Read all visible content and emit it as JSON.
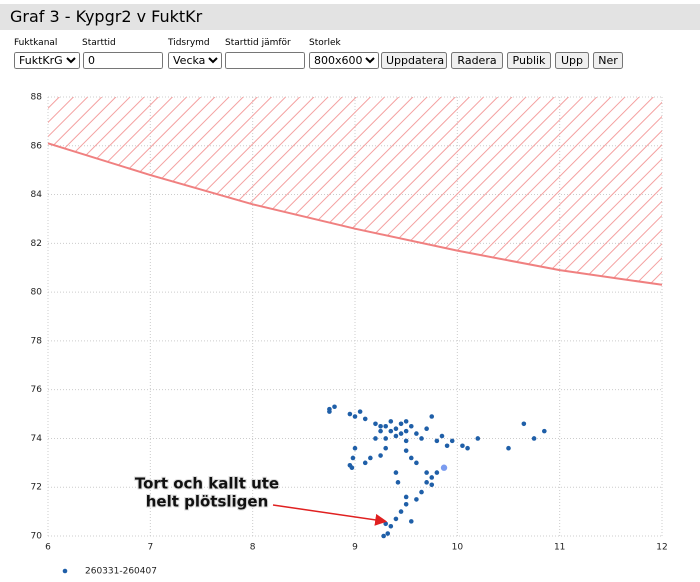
{
  "header": {
    "title": "Graf 3 - Kypgr2 v FuktKr"
  },
  "form": {
    "labels": [
      "Fuktkanal",
      "Starttid",
      "Tidsrymd",
      "Starttid jämför",
      "Storlek"
    ],
    "channel": "FuktKrGr",
    "start": "0",
    "span": "Vecka",
    "size": "800x600",
    "buttons": [
      "Uppdatera",
      "Radera",
      "Publik",
      "Upp",
      "Ner"
    ]
  },
  "chart_data": {
    "type": "scatter",
    "xlim": [
      6,
      12
    ],
    "xticks": [
      6,
      7,
      8,
      9,
      10,
      11,
      12
    ],
    "ylim": [
      70,
      88
    ],
    "yticks": [
      70,
      72,
      74,
      76,
      78,
      80,
      82,
      84,
      86,
      88
    ],
    "grid": true,
    "threshold_line": {
      "color": "#f08080",
      "x": [
        6,
        7,
        8,
        9,
        10,
        11,
        12
      ],
      "values": [
        86.1,
        84.8,
        83.6,
        82.6,
        81.7,
        80.9,
        80.3
      ]
    },
    "series": [
      {
        "name": "260331-260407",
        "color": "#1f5fa8",
        "x": [
          8.75,
          8.8,
          8.75,
          8.95,
          9.0,
          9.05,
          9.1,
          9.2,
          9.25,
          9.3,
          9.35,
          9.4,
          9.45,
          9.5,
          9.55,
          9.6,
          9.65,
          9.3,
          9.4,
          9.5,
          9.7,
          9.75,
          9.8,
          9.85,
          9.9,
          9.95,
          10.05,
          10.1,
          10.2,
          10.5,
          10.65,
          10.75,
          10.85,
          9.0,
          8.98,
          8.95,
          8.97,
          9.1,
          9.15,
          9.3,
          9.2,
          9.5,
          9.55,
          9.6,
          9.7,
          9.75,
          9.75,
          9.8,
          9.7,
          9.65,
          9.6,
          9.5,
          9.45,
          9.4,
          9.35,
          9.3,
          9.32,
          9.28,
          9.55,
          9.5,
          9.42,
          9.4,
          9.25,
          9.35,
          9.45,
          9.25,
          9.5
        ],
        "values": [
          75.2,
          75.3,
          75.1,
          75.0,
          74.9,
          75.1,
          74.8,
          74.6,
          74.3,
          74.5,
          74.7,
          74.4,
          74.6,
          74.3,
          74.5,
          74.2,
          74.0,
          74.0,
          74.1,
          73.9,
          74.4,
          74.9,
          73.9,
          74.1,
          73.7,
          73.9,
          73.7,
          73.6,
          74.0,
          73.6,
          74.6,
          74.0,
          74.3,
          73.6,
          73.2,
          72.9,
          72.8,
          73.0,
          73.2,
          73.6,
          74.0,
          73.5,
          73.2,
          73.0,
          72.6,
          72.4,
          72.1,
          72.6,
          72.2,
          71.8,
          71.5,
          71.3,
          71.0,
          70.7,
          70.4,
          70.5,
          70.1,
          70.0,
          70.6,
          71.6,
          72.2,
          72.6,
          73.3,
          74.3,
          74.2,
          74.5,
          74.7
        ]
      }
    ],
    "highlight_point": {
      "x": 9.87,
      "y": 72.8,
      "color": "#7b9cf0"
    },
    "annotation": {
      "lines": [
        "Tort och kallt ute",
        "helt plötsligen"
      ],
      "xy": [
        9.3,
        70.6
      ],
      "color": "#e02020"
    }
  }
}
